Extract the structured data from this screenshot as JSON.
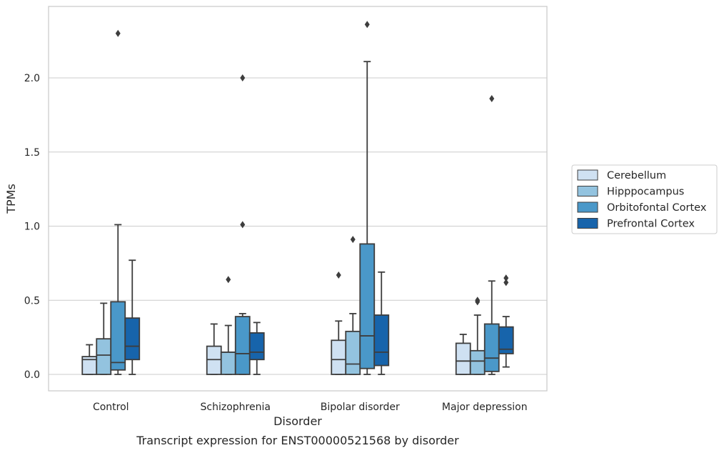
{
  "chart_data": {
    "type": "box",
    "xlabel": "Disorder",
    "ylabel": "TPMs",
    "caption": "Transcript expression for ENST00000521568 by disorder",
    "categories": [
      "Control",
      "Schizophrenia",
      "Bipolar disorder",
      "Major depression"
    ],
    "ylim": [
      -0.11,
      2.48
    ],
    "yticks": [
      0.0,
      0.5,
      1.0,
      1.5,
      2.0
    ],
    "yticklabels": [
      "0.0",
      "0.5",
      "1.0",
      "1.5",
      "2.0"
    ],
    "grid": "horizontal",
    "legend_position": "right",
    "hue_colors": {
      "Cerebellum": "#cfe1f2",
      "Hipppocampus": "#93c3df",
      "Orbitofontal Cortex": "#4a98c9",
      "Prefrontal Cortex": "#1764ab"
    },
    "series": [
      {
        "name": "Cerebellum",
        "color": "#cfe1f2",
        "boxes": [
          {
            "whisker_low": 0.0,
            "q1": 0.0,
            "median": 0.1,
            "q3": 0.12,
            "whisker_high": 0.2,
            "outliers": []
          },
          {
            "whisker_low": 0.0,
            "q1": 0.0,
            "median": 0.1,
            "q3": 0.19,
            "whisker_high": 0.34,
            "outliers": []
          },
          {
            "whisker_low": 0.0,
            "q1": 0.0,
            "median": 0.1,
            "q3": 0.23,
            "whisker_high": 0.36,
            "outliers": [
              0.67
            ]
          },
          {
            "whisker_low": 0.0,
            "q1": 0.0,
            "median": 0.09,
            "q3": 0.21,
            "whisker_high": 0.27,
            "outliers": []
          }
        ]
      },
      {
        "name": "Hipppocampus",
        "color": "#93c3df",
        "boxes": [
          {
            "whisker_low": 0.0,
            "q1": 0.0,
            "median": 0.13,
            "q3": 0.24,
            "whisker_high": 0.48,
            "outliers": []
          },
          {
            "whisker_low": 0.0,
            "q1": 0.0,
            "median": 0.15,
            "q3": 0.15,
            "whisker_high": 0.33,
            "outliers": [
              0.64
            ]
          },
          {
            "whisker_low": 0.0,
            "q1": 0.0,
            "median": 0.07,
            "q3": 0.29,
            "whisker_high": 0.41,
            "outliers": [
              0.91
            ]
          },
          {
            "whisker_low": 0.0,
            "q1": 0.0,
            "median": 0.09,
            "q3": 0.16,
            "whisker_high": 0.4,
            "outliers": [
              0.49,
              0.5
            ]
          }
        ]
      },
      {
        "name": "Orbitofontal Cortex",
        "color": "#4a98c9",
        "boxes": [
          {
            "whisker_low": 0.0,
            "q1": 0.03,
            "median": 0.08,
            "q3": 0.49,
            "whisker_high": 1.01,
            "outliers": [
              2.3
            ]
          },
          {
            "whisker_low": 0.0,
            "q1": 0.0,
            "median": 0.14,
            "q3": 0.39,
            "whisker_high": 0.41,
            "outliers": [
              1.01,
              2.0
            ]
          },
          {
            "whisker_low": 0.0,
            "q1": 0.04,
            "median": 0.26,
            "q3": 0.88,
            "whisker_high": 2.11,
            "outliers": [
              2.36
            ]
          },
          {
            "whisker_low": 0.0,
            "q1": 0.02,
            "median": 0.11,
            "q3": 0.34,
            "whisker_high": 0.63,
            "outliers": [
              1.86
            ]
          }
        ]
      },
      {
        "name": "Prefrontal Cortex",
        "color": "#1764ab",
        "boxes": [
          {
            "whisker_low": 0.0,
            "q1": 0.1,
            "median": 0.19,
            "q3": 0.38,
            "whisker_high": 0.77,
            "outliers": []
          },
          {
            "whisker_low": 0.0,
            "q1": 0.1,
            "median": 0.15,
            "q3": 0.28,
            "whisker_high": 0.35,
            "outliers": []
          },
          {
            "whisker_low": 0.0,
            "q1": 0.06,
            "median": 0.15,
            "q3": 0.4,
            "whisker_high": 0.69,
            "outliers": []
          },
          {
            "whisker_low": 0.05,
            "q1": 0.14,
            "median": 0.17,
            "q3": 0.32,
            "whisker_high": 0.39,
            "outliers": [
              0.62,
              0.65
            ]
          }
        ]
      }
    ]
  }
}
